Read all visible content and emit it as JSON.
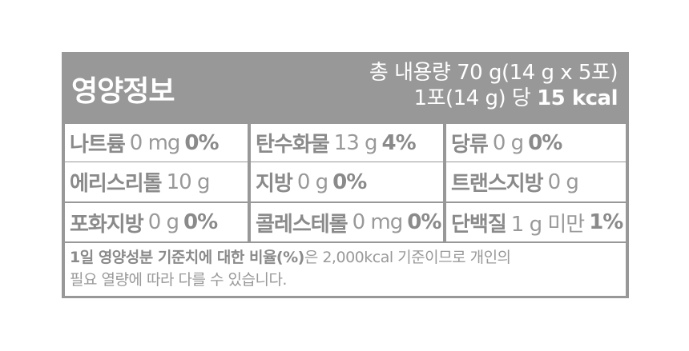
{
  "header": {
    "title": "영양정보",
    "total_content": "총 내용량 70 g(14 g x 5포)",
    "per_serving": "1포(14 g) 당",
    "calories": "15 kcal"
  },
  "rows": [
    [
      {
        "name": "나트륨",
        "value": "0 mg",
        "percent": "0%"
      },
      {
        "name": "탄수화물",
        "value": "13 g",
        "percent": "4%"
      },
      {
        "name": "당류",
        "value": "0 g",
        "percent": "0%"
      }
    ],
    [
      {
        "name": "에리스리톨",
        "value": "10 g",
        "percent": ""
      },
      {
        "name": "지방",
        "value": "0 g",
        "percent": "0%"
      },
      {
        "name": "트랜스지방",
        "value": "0 g",
        "percent": ""
      }
    ],
    [
      {
        "name": "포화지방",
        "value": "0 g",
        "percent": "0%"
      },
      {
        "name": "콜레스테롤",
        "value": "0 mg",
        "percent": "0%"
      },
      {
        "name": "단백질",
        "value": "1 g 미만",
        "percent": "1%"
      }
    ]
  ],
  "footer": {
    "bold_part": "1일 영양성분 기준치에 대한 비율(%)",
    "rest_line1": "은 2,000kcal 기준이므로 개인의",
    "line2": "필요 열량에 따라 다를 수 있습니다."
  },
  "colors": {
    "border": "#989898",
    "text": "#8a8a8a",
    "header_text": "#ffffff"
  }
}
